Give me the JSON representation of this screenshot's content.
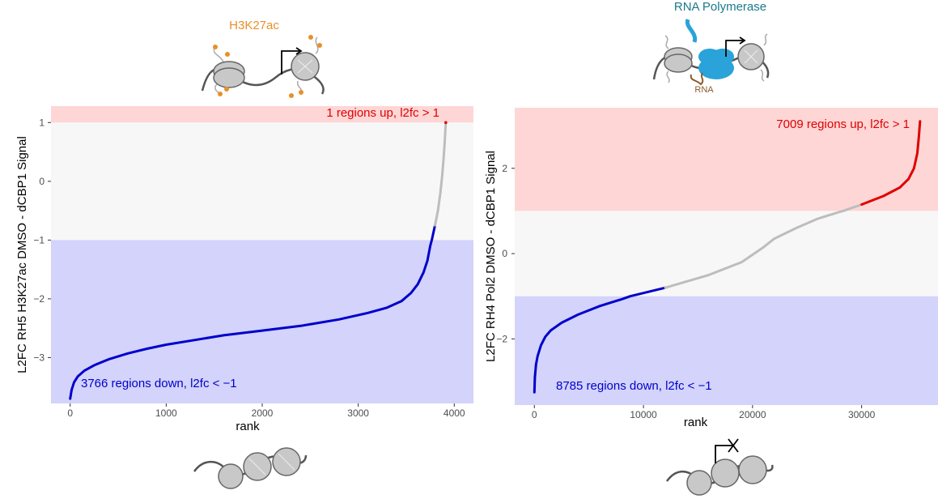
{
  "colors": {
    "up_band": "#fed6d6",
    "neutral_band": "#f7f7f7",
    "down_band": "#d3d3fb",
    "up_line": "#e00000",
    "neutral_line": "#bdbdbd",
    "down_line": "#0000cc",
    "h3k27ac_label": "#e8902a",
    "rnapol_label": "#1a7a8c",
    "rnapol_fill": "#29a3d9",
    "rna_label": "#8b5a2b",
    "nucleosome": "#c8c8c8",
    "dna": "#555555"
  },
  "illustrations": {
    "top_left_label": "H3K27ac",
    "top_right_label": "RNA Polymerase",
    "top_right_sublabel": "RNA",
    "top_left_icon": "acetylated-nucleosomes-icon",
    "top_right_icon": "rna-polymerase-nucleosomes-icon",
    "bottom_left_icon": "compacted-nucleosomes-icon",
    "bottom_right_icon": "blocked-transcription-nucleosomes-icon"
  },
  "chart_data": [
    {
      "type": "line",
      "description_role": "ranked log2 fold change, H3K27ac",
      "ylabel": "L2FC RH5 H3K27ac DMSO - dCBP1 Signal",
      "xlabel": "rank",
      "xlim": [
        -200,
        4200
      ],
      "ylim": [
        -3.78,
        1.28
      ],
      "xticks": [
        0,
        1000,
        2000,
        3000,
        4000
      ],
      "xtick_labels": [
        "0",
        "1000",
        "2000",
        "3000",
        "4000"
      ],
      "yticks": [
        -3,
        -2,
        -1,
        0,
        1
      ],
      "ytick_labels": [
        "−3",
        "−2",
        "−1",
        "0",
        "1"
      ],
      "bands": [
        {
          "name": "up",
          "from": 1,
          "to": 1.28
        },
        {
          "name": "neutral",
          "from": -1,
          "to": 1
        },
        {
          "name": "down",
          "from": -3.78,
          "to": -1
        }
      ],
      "threshold_up": 1,
      "threshold_down": -1,
      "points": [
        [
          0,
          -3.7
        ],
        [
          15,
          -3.55
        ],
        [
          40,
          -3.42
        ],
        [
          80,
          -3.32
        ],
        [
          150,
          -3.22
        ],
        [
          250,
          -3.13
        ],
        [
          400,
          -3.03
        ],
        [
          600,
          -2.93
        ],
        [
          800,
          -2.85
        ],
        [
          1000,
          -2.78
        ],
        [
          1300,
          -2.7
        ],
        [
          1600,
          -2.62
        ],
        [
          2000,
          -2.54
        ],
        [
          2400,
          -2.46
        ],
        [
          2800,
          -2.35
        ],
        [
          3100,
          -2.24
        ],
        [
          3300,
          -2.15
        ],
        [
          3450,
          -2.04
        ],
        [
          3550,
          -1.9
        ],
        [
          3620,
          -1.75
        ],
        [
          3680,
          -1.55
        ],
        [
          3720,
          -1.35
        ],
        [
          3750,
          -1.1
        ],
        [
          3766,
          -1.0
        ],
        [
          3800,
          -0.75
        ],
        [
          3830,
          -0.5
        ],
        [
          3855,
          -0.2
        ],
        [
          3875,
          0.1
        ],
        [
          3890,
          0.4
        ],
        [
          3902,
          0.7
        ],
        [
          3910,
          0.95
        ],
        [
          3912,
          1.0
        ]
      ],
      "annotation_up": "1 regions up, l2fc > 1",
      "annotation_down": "3766 regions down, l2fc < −1"
    },
    {
      "type": "line",
      "description_role": "ranked log2 fold change, Pol2",
      "ylabel": "L2FC RH4 Pol2 DMSO - dCBP1 Signal",
      "xlabel": "rank",
      "xlim": [
        -1800,
        37000
      ],
      "ylim": [
        -3.55,
        3.42
      ],
      "xticks": [
        0,
        10000,
        20000,
        30000
      ],
      "xtick_labels": [
        "0",
        "10000",
        "20000",
        "30000"
      ],
      "yticks": [
        -2,
        0,
        2
      ],
      "ytick_labels": [
        "−2",
        "0",
        "2"
      ],
      "bands": [
        {
          "name": "up",
          "from": 1,
          "to": 3.42
        },
        {
          "name": "neutral",
          "from": -1,
          "to": 1
        },
        {
          "name": "down",
          "from": -3.55,
          "to": -1
        }
      ],
      "threshold_up": 1,
      "threshold_down": -1,
      "points": [
        [
          0,
          -3.25
        ],
        [
          50,
          -2.9
        ],
        [
          150,
          -2.6
        ],
        [
          300,
          -2.4
        ],
        [
          600,
          -2.15
        ],
        [
          1000,
          -1.95
        ],
        [
          1500,
          -1.8
        ],
        [
          2500,
          -1.62
        ],
        [
          4000,
          -1.43
        ],
        [
          6000,
          -1.23
        ],
        [
          8000,
          -1.07
        ],
        [
          8785,
          -1.0
        ],
        [
          12000,
          -0.8
        ],
        [
          16000,
          -0.5
        ],
        [
          19000,
          -0.2
        ],
        [
          21000,
          0.15
        ],
        [
          22000,
          0.35
        ],
        [
          24000,
          0.6
        ],
        [
          26000,
          0.82
        ],
        [
          28000,
          0.98
        ],
        [
          28300,
          1.0
        ],
        [
          30000,
          1.15
        ],
        [
          32000,
          1.35
        ],
        [
          33500,
          1.55
        ],
        [
          34300,
          1.75
        ],
        [
          34800,
          2.0
        ],
        [
          35100,
          2.35
        ],
        [
          35250,
          2.75
        ],
        [
          35350,
          3.1
        ]
      ],
      "annotation_up": "7009 regions up, l2fc > 1",
      "annotation_down": "8785 regions down, l2fc < −1"
    }
  ]
}
